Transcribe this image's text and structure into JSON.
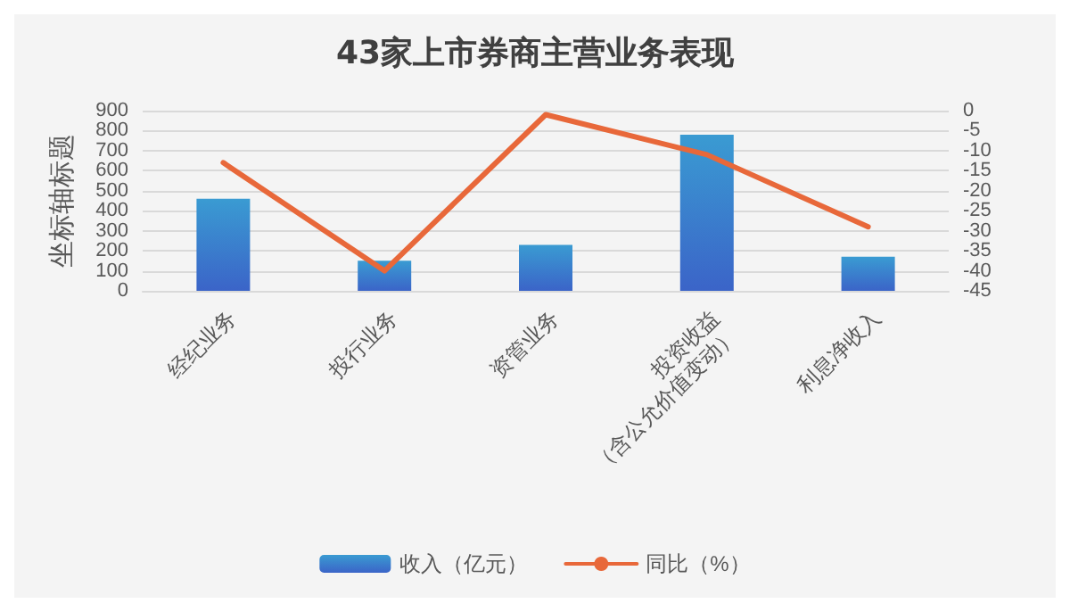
{
  "chart_data": {
    "type": "bar",
    "title": "43家上市券商主营业务表现",
    "ylabel": "坐标轴标题",
    "categories": [
      "经纪业务",
      "投行业务",
      "资管业务",
      "投资收益\n（含公允价值变动）",
      "利息净收入"
    ],
    "series": [
      {
        "name": "收入（亿元）",
        "color": "#3a9bd2",
        "values": [
          460,
          150,
          230,
          780,
          170
        ]
      },
      {
        "name": "同比（%）",
        "type": "line",
        "axis": "y2",
        "color": "#e8683a",
        "values": [
          -13,
          -40,
          -1,
          -11,
          -29
        ]
      }
    ],
    "ylim": [
      0,
      900
    ],
    "yticks": [
      0,
      100,
      200,
      300,
      400,
      500,
      600,
      700,
      800,
      900
    ],
    "y2lim": [
      -45,
      0
    ],
    "y2ticks": [
      -45,
      -40,
      -35,
      -30,
      -25,
      -20,
      -15,
      -10,
      -5,
      0
    ],
    "grid": "y",
    "legend": "bottom",
    "marker": "none"
  }
}
